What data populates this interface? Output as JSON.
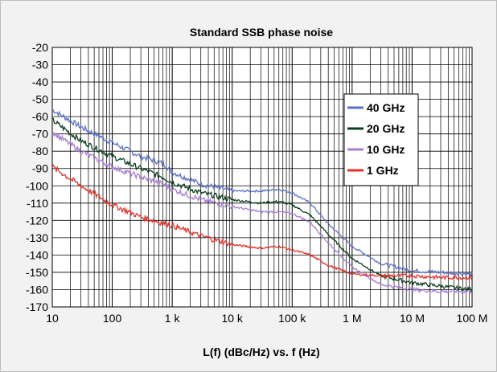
{
  "chart_data": {
    "type": "line",
    "title": "Standard SSB phase noise",
    "xlabel": "L(f) (dBc/Hz) vs. f (Hz)",
    "ylabel": "",
    "x_scale": "log",
    "xlim": [
      10,
      100000000
    ],
    "ylim": [
      -170,
      -20
    ],
    "grid": true,
    "legend_position": "right",
    "x_ticks": [
      {
        "value": 10,
        "label": "10"
      },
      {
        "value": 100,
        "label": "100"
      },
      {
        "value": 1000,
        "label": "1 k"
      },
      {
        "value": 10000,
        "label": "10 k"
      },
      {
        "value": 100000,
        "label": "100 k"
      },
      {
        "value": 1000000,
        "label": "1 M"
      },
      {
        "value": 10000000,
        "label": "10 M"
      },
      {
        "value": 100000000,
        "label": "100 M"
      }
    ],
    "y_ticks": [
      -20,
      -30,
      -40,
      -50,
      -60,
      -70,
      -80,
      -90,
      -100,
      -110,
      -120,
      -130,
      -140,
      -150,
      -160,
      -170
    ],
    "series": [
      {
        "name": "40 GHz",
        "color": "#5b6fc4",
        "points": [
          [
            10,
            -56
          ],
          [
            30,
            -66
          ],
          [
            100,
            -75
          ],
          [
            300,
            -83
          ],
          [
            700,
            -87
          ],
          [
            1000,
            -92
          ],
          [
            3000,
            -99
          ],
          [
            10000,
            -103
          ],
          [
            30000,
            -103
          ],
          [
            60000,
            -102
          ],
          [
            100000,
            -104
          ],
          [
            200000,
            -110
          ],
          [
            400000,
            -122
          ],
          [
            1000000,
            -135
          ],
          [
            3000000,
            -145
          ],
          [
            10000000,
            -149
          ],
          [
            30000000,
            -150
          ],
          [
            100000000,
            -151
          ]
        ]
      },
      {
        "name": "20 GHz",
        "color": "#0b3d1e",
        "points": [
          [
            10,
            -62
          ],
          [
            30,
            -74
          ],
          [
            100,
            -83
          ],
          [
            300,
            -90
          ],
          [
            700,
            -95
          ],
          [
            1000,
            -98
          ],
          [
            3000,
            -104
          ],
          [
            10000,
            -108
          ],
          [
            30000,
            -110
          ],
          [
            60000,
            -109
          ],
          [
            100000,
            -111
          ],
          [
            200000,
            -117
          ],
          [
            400000,
            -128
          ],
          [
            1000000,
            -142
          ],
          [
            3000000,
            -152
          ],
          [
            10000000,
            -156
          ],
          [
            30000000,
            -158
          ],
          [
            100000000,
            -160
          ]
        ]
      },
      {
        "name": "10 GHz",
        "color": "#a57fd1",
        "points": [
          [
            10,
            -69
          ],
          [
            30,
            -80
          ],
          [
            100,
            -89
          ],
          [
            300,
            -95
          ],
          [
            700,
            -99
          ],
          [
            1000,
            -102
          ],
          [
            3000,
            -108
          ],
          [
            10000,
            -112
          ],
          [
            30000,
            -115
          ],
          [
            60000,
            -115
          ],
          [
            100000,
            -116
          ],
          [
            200000,
            -121
          ],
          [
            400000,
            -133
          ],
          [
            1000000,
            -147
          ],
          [
            3000000,
            -157
          ],
          [
            10000000,
            -160
          ],
          [
            30000000,
            -161
          ],
          [
            100000000,
            -161
          ]
        ]
      },
      {
        "name": "1 GHz",
        "color": "#e2302a",
        "points": [
          [
            10,
            -89
          ],
          [
            30,
            -100
          ],
          [
            100,
            -111
          ],
          [
            300,
            -118
          ],
          [
            1000,
            -123
          ],
          [
            3000,
            -129
          ],
          [
            10000,
            -134
          ],
          [
            30000,
            -136
          ],
          [
            60000,
            -135
          ],
          [
            100000,
            -137
          ],
          [
            200000,
            -140
          ],
          [
            400000,
            -146
          ],
          [
            1000000,
            -151
          ],
          [
            3000000,
            -152
          ],
          [
            10000000,
            -152
          ],
          [
            30000000,
            -153
          ],
          [
            100000000,
            -153
          ]
        ]
      }
    ]
  }
}
